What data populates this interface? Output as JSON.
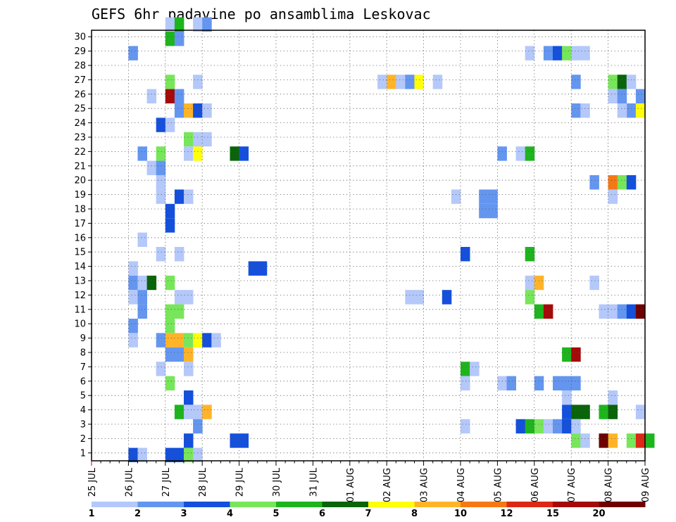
{
  "chart_data": {
    "type": "heatmap",
    "title": "GEFS 6hr padavine po ansamblima Leskovac",
    "x_labels": [
      "25 JUL",
      "26 JUL",
      "27 JUL",
      "28 JUL",
      "29 JUL",
      "30 JUL",
      "31 JUL",
      "01 AUG",
      "02 AUG",
      "03 AUG",
      "04 AUG",
      "05 AUG",
      "06 AUG",
      "07 AUG",
      "08 AUG",
      "09 AUG"
    ],
    "y_labels": [
      "1",
      "2",
      "3",
      "4",
      "5",
      "6",
      "7",
      "8",
      "9",
      "10",
      "11",
      "12",
      "13",
      "14",
      "15",
      "16",
      "17",
      "18",
      "19",
      "20",
      "21",
      "22",
      "23",
      "24",
      "25",
      "26",
      "27",
      "28",
      "29",
      "30"
    ],
    "xlim": [
      "25 JUL 00Z",
      "09 AUG 00Z"
    ],
    "ylim": [
      0,
      30
    ],
    "grid": true,
    "colorbar": {
      "labels": [
        "1",
        "2",
        "3",
        "4",
        "5",
        "6",
        "7",
        "8",
        "10",
        "12",
        "15",
        "20"
      ],
      "colors": [
        "#b4c8fa",
        "#6496f0",
        "#1450dc",
        "#78e65a",
        "#1eb41e",
        "#0a640a",
        "#ffff0a",
        "#ffb428",
        "#f57814",
        "#dc2814",
        "#a50a0a",
        "#6e0000"
      ]
    },
    "points": [
      [
        8,
        30,
        1
      ],
      [
        9,
        30,
        5
      ],
      [
        11,
        30,
        1
      ],
      [
        12,
        30,
        2
      ],
      [
        8,
        29,
        5
      ],
      [
        9,
        29,
        2
      ],
      [
        4,
        28,
        2
      ],
      [
        47,
        28,
        1
      ],
      [
        49,
        28,
        2
      ],
      [
        50,
        28,
        3
      ],
      [
        51,
        28,
        4
      ],
      [
        52,
        28,
        1
      ],
      [
        53,
        28,
        1
      ],
      [
        31,
        26,
        1
      ],
      [
        32,
        26,
        8
      ],
      [
        33,
        26,
        1
      ],
      [
        34,
        26,
        2
      ],
      [
        35,
        26,
        7
      ],
      [
        37,
        26,
        1
      ],
      [
        52,
        26,
        2
      ],
      [
        56,
        26,
        4
      ],
      [
        57,
        26,
        6
      ],
      [
        58,
        26,
        1
      ],
      [
        11,
        26,
        1
      ],
      [
        8,
        26,
        4
      ],
      [
        6,
        25,
        1
      ],
      [
        8,
        25,
        11
      ],
      [
        9,
        25,
        2
      ],
      [
        56,
        25,
        1
      ],
      [
        57,
        25,
        2
      ],
      [
        59,
        25,
        2
      ],
      [
        9,
        24,
        2
      ],
      [
        10,
        24,
        8
      ],
      [
        11,
        24,
        3
      ],
      [
        12,
        24,
        1
      ],
      [
        52,
        24,
        2
      ],
      [
        53,
        24,
        1
      ],
      [
        58,
        24,
        2
      ],
      [
        59,
        24,
        7
      ],
      [
        57,
        24,
        1
      ],
      [
        7,
        23,
        3
      ],
      [
        8,
        23,
        1
      ],
      [
        10,
        22,
        4
      ],
      [
        11,
        22,
        1
      ],
      [
        12,
        22,
        1
      ],
      [
        5,
        21,
        2
      ],
      [
        7,
        21,
        4
      ],
      [
        10,
        21,
        1
      ],
      [
        11,
        21,
        7
      ],
      [
        15,
        21,
        6
      ],
      [
        16,
        21,
        3
      ],
      [
        44,
        21,
        2
      ],
      [
        46,
        21,
        1
      ],
      [
        47,
        21,
        5
      ],
      [
        6,
        20,
        1
      ],
      [
        7,
        20,
        2
      ],
      [
        7,
        19,
        1
      ],
      [
        54,
        19,
        2
      ],
      [
        56,
        19,
        9
      ],
      [
        57,
        19,
        4
      ],
      [
        58,
        19,
        3
      ],
      [
        7,
        18,
        1
      ],
      [
        9,
        18,
        3
      ],
      [
        10,
        18,
        1
      ],
      [
        39,
        18,
        1
      ],
      [
        42,
        18,
        2
      ],
      [
        43,
        18,
        2
      ],
      [
        56,
        18,
        1
      ],
      [
        8,
        17,
        3
      ],
      [
        42,
        17,
        2
      ],
      [
        43,
        17,
        2
      ],
      [
        8,
        16,
        3
      ],
      [
        5,
        15,
        1
      ],
      [
        7,
        14,
        1
      ],
      [
        9,
        14,
        1
      ],
      [
        40,
        14,
        3
      ],
      [
        47,
        14,
        5
      ],
      [
        4,
        13,
        1
      ],
      [
        17,
        13,
        3
      ],
      [
        18,
        13,
        3
      ],
      [
        4,
        12,
        2
      ],
      [
        5,
        12,
        1
      ],
      [
        6,
        12,
        6
      ],
      [
        8,
        12,
        4
      ],
      [
        47,
        12,
        1
      ],
      [
        48,
        12,
        8
      ],
      [
        54,
        12,
        1
      ],
      [
        4,
        11,
        1
      ],
      [
        5,
        11,
        2
      ],
      [
        9,
        11,
        1
      ],
      [
        10,
        11,
        1
      ],
      [
        34,
        11,
        1
      ],
      [
        35,
        11,
        1
      ],
      [
        38,
        11,
        3
      ],
      [
        47,
        11,
        4
      ],
      [
        5,
        10,
        2
      ],
      [
        8,
        10,
        4
      ],
      [
        9,
        10,
        4
      ],
      [
        48,
        10,
        5
      ],
      [
        49,
        10,
        11
      ],
      [
        55,
        10,
        1
      ],
      [
        56,
        10,
        1
      ],
      [
        57,
        10,
        2
      ],
      [
        58,
        10,
        3
      ],
      [
        59,
        10,
        12
      ],
      [
        4,
        9,
        2
      ],
      [
        8,
        9,
        4
      ],
      [
        4,
        8,
        1
      ],
      [
        7,
        8,
        2
      ],
      [
        8,
        8,
        8
      ],
      [
        9,
        8,
        8
      ],
      [
        10,
        8,
        4
      ],
      [
        11,
        8,
        7
      ],
      [
        12,
        8,
        3
      ],
      [
        13,
        8,
        1
      ],
      [
        8,
        7,
        2
      ],
      [
        9,
        7,
        2
      ],
      [
        10,
        7,
        8
      ],
      [
        51,
        7,
        5
      ],
      [
        52,
        7,
        11
      ],
      [
        7,
        6,
        1
      ],
      [
        10,
        6,
        1
      ],
      [
        40,
        6,
        5
      ],
      [
        41,
        6,
        1
      ],
      [
        8,
        5,
        4
      ],
      [
        40,
        5,
        1
      ],
      [
        44,
        5,
        1
      ],
      [
        45,
        5,
        2
      ],
      [
        48,
        5,
        2
      ],
      [
        50,
        5,
        2
      ],
      [
        51,
        5,
        2
      ],
      [
        52,
        5,
        2
      ],
      [
        10,
        4,
        3
      ],
      [
        51,
        4,
        1
      ],
      [
        56,
        4,
        1
      ],
      [
        9,
        3,
        5
      ],
      [
        10,
        3,
        1
      ],
      [
        11,
        3,
        1
      ],
      [
        12,
        3,
        8
      ],
      [
        51,
        3,
        3
      ],
      [
        52,
        3,
        6
      ],
      [
        53,
        3,
        6
      ],
      [
        55,
        3,
        5
      ],
      [
        56,
        3,
        6
      ],
      [
        59,
        3,
        1
      ],
      [
        11,
        2,
        2
      ],
      [
        40,
        2,
        1
      ],
      [
        46,
        2,
        3
      ],
      [
        47,
        2,
        5
      ],
      [
        48,
        2,
        4
      ],
      [
        49,
        2,
        1
      ],
      [
        50,
        2,
        2
      ],
      [
        51,
        2,
        3
      ],
      [
        52,
        2,
        1
      ],
      [
        10,
        1,
        3
      ],
      [
        15,
        1,
        3
      ],
      [
        16,
        1,
        3
      ],
      [
        52,
        1,
        4
      ],
      [
        53,
        1,
        1
      ],
      [
        55,
        1,
        12
      ],
      [
        56,
        1,
        8
      ],
      [
        58,
        1,
        4
      ],
      [
        59,
        1,
        10
      ],
      [
        60,
        1,
        5
      ],
      [
        4,
        0,
        3
      ],
      [
        5,
        0,
        1
      ],
      [
        8,
        0,
        3
      ],
      [
        9,
        0,
        3
      ],
      [
        10,
        0,
        4
      ],
      [
        11,
        0,
        1
      ]
    ]
  }
}
